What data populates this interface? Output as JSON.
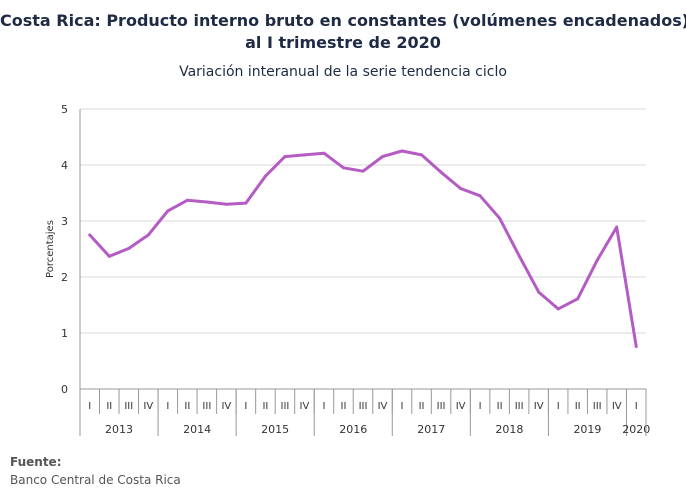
{
  "title_line1": "Costa Rica: Producto interno bruto en constantes (volúmenes encadenados)",
  "title_line2": "al I trimestre de 2020",
  "subtitle": "Variación interanual de la serie tendencia ciclo",
  "source_label": "Fuente:",
  "source_text": "Banco Central de Costa Rica",
  "line_color": "#b45cc4",
  "chart_data": {
    "type": "line",
    "title": "Costa Rica: Producto interno bruto en constantes (volúmenes encadenados) al I trimestre de 2020",
    "subtitle": "Variación interanual de la serie tendencia ciclo",
    "xlabel": "",
    "ylabel": "Porcentajes",
    "ylim": [
      0,
      5
    ],
    "yticks": [
      0,
      1,
      2,
      3,
      4,
      5
    ],
    "grid": true,
    "quarter_labels": [
      "I",
      "II",
      "III",
      "IV",
      "I",
      "II",
      "III",
      "IV",
      "I",
      "II",
      "III",
      "IV",
      "I",
      "II",
      "III",
      "IV",
      "I",
      "II",
      "III",
      "IV",
      "I",
      "II",
      "III",
      "IV",
      "I",
      "II",
      "III",
      "IV",
      "I"
    ],
    "years": [
      {
        "label": "2013",
        "quarters": 4
      },
      {
        "label": "2014",
        "quarters": 4
      },
      {
        "label": "2015",
        "quarters": 4
      },
      {
        "label": "2016",
        "quarters": 4
      },
      {
        "label": "2017",
        "quarters": 4
      },
      {
        "label": "2018",
        "quarters": 4
      },
      {
        "label": "2019",
        "quarters": 4
      },
      {
        "label": "2020",
        "quarters": 1
      }
    ],
    "series": [
      {
        "values": [
          2.75,
          2.37,
          2.51,
          2.75,
          3.18,
          3.37,
          3.34,
          3.3,
          3.32,
          3.8,
          4.15,
          4.18,
          4.21,
          3.95,
          3.89,
          4.15,
          4.25,
          4.18,
          3.87,
          3.58,
          3.45,
          3.05,
          2.38,
          1.73,
          1.43,
          1.61,
          2.3,
          2.89,
          0.76
        ]
      }
    ]
  }
}
